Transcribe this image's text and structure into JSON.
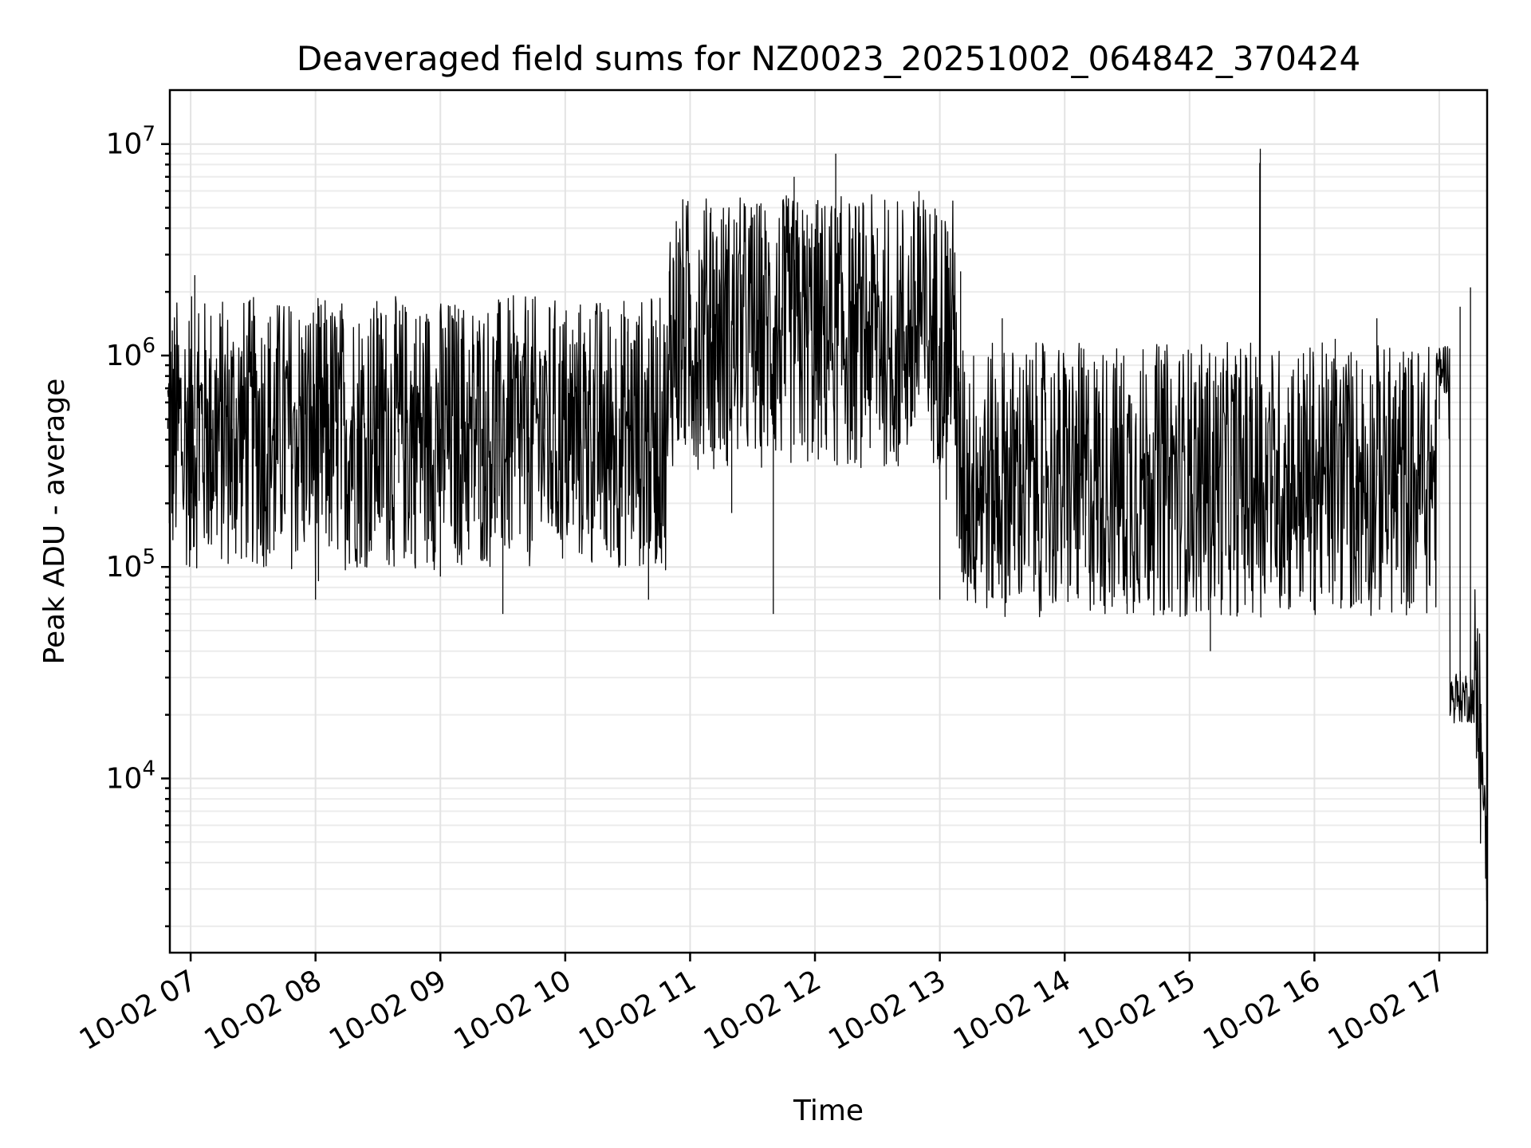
{
  "chart_data": {
    "type": "line",
    "title": "Deaveraged field sums for NZ0023_20251002_064842_370424",
    "xlabel": "Time",
    "ylabel": "Peak ADU - average",
    "yscale": "log",
    "ylim": [
      1500,
      18000000
    ],
    "xlim": [
      "2025-10-02 06:50",
      "2025-10-02 17:23"
    ],
    "grid": "major and minor",
    "x_ticks": [
      "10-02 07",
      "10-02 08",
      "10-02 09",
      "10-02 10",
      "10-02 11",
      "10-02 12",
      "10-02 13",
      "10-02 14",
      "10-02 15",
      "10-02 16",
      "10-02 17"
    ],
    "y_ticks": [
      {
        "base": "10",
        "exp": "4",
        "value": 10000
      },
      {
        "base": "10",
        "exp": "5",
        "value": 100000
      },
      {
        "base": "10",
        "exp": "6",
        "value": 1000000
      },
      {
        "base": "10",
        "exp": "7",
        "value": 10000000
      }
    ],
    "series": [
      {
        "color": "#000000",
        "x": [
          "2025-10-02 06:49",
          "2025-10-02 07:00",
          "2025-10-02 07:02",
          "2025-10-02 07:10",
          "2025-10-02 07:20",
          "2025-10-02 07:30",
          "2025-10-02 07:40",
          "2025-10-02 07:50",
          "2025-10-02 08:00",
          "2025-10-02 08:10",
          "2025-10-02 08:20",
          "2025-10-02 08:30",
          "2025-10-02 08:40",
          "2025-10-02 08:50",
          "2025-10-02 09:00",
          "2025-10-02 09:10",
          "2025-10-02 09:20",
          "2025-10-02 09:30",
          "2025-10-02 09:40",
          "2025-10-02 09:50",
          "2025-10-02 10:00",
          "2025-10-02 10:10",
          "2025-10-02 10:20",
          "2025-10-02 10:30",
          "2025-10-02 10:40",
          "2025-10-02 10:50",
          "2025-10-02 11:00",
          "2025-10-02 11:10",
          "2025-10-02 11:20",
          "2025-10-02 11:30",
          "2025-10-02 11:40",
          "2025-10-02 11:50",
          "2025-10-02 12:00",
          "2025-10-02 12:10",
          "2025-10-02 12:20",
          "2025-10-02 12:30",
          "2025-10-02 12:40",
          "2025-10-02 12:50",
          "2025-10-02 13:00",
          "2025-10-02 13:10",
          "2025-10-02 13:20",
          "2025-10-02 13:30",
          "2025-10-02 13:40",
          "2025-10-02 13:50",
          "2025-10-02 14:00",
          "2025-10-02 14:10",
          "2025-10-02 14:20",
          "2025-10-02 14:30",
          "2025-10-02 14:40",
          "2025-10-02 14:50",
          "2025-10-02 15:00",
          "2025-10-02 15:10",
          "2025-10-02 15:20",
          "2025-10-02 15:30",
          "2025-10-02 15:34",
          "2025-10-02 15:40",
          "2025-10-02 15:50",
          "2025-10-02 16:00",
          "2025-10-02 16:10",
          "2025-10-02 16:20",
          "2025-10-02 16:30",
          "2025-10-02 16:40",
          "2025-10-02 16:50",
          "2025-10-02 17:00",
          "2025-10-02 17:05",
          "2025-10-02 17:10",
          "2025-10-02 17:15",
          "2025-10-02 17:18",
          "2025-10-02 17:20",
          "2025-10-02 17:23"
        ],
        "values": [
          500000,
          120000,
          2400000,
          400000,
          150000,
          800000,
          120000,
          600000,
          70000,
          300000,
          150000,
          1500000,
          250000,
          700000,
          90000,
          1200000,
          300000,
          60000,
          800000,
          1000000,
          250000,
          800000,
          120000,
          1300000,
          70000,
          2500000,
          800000,
          5000000,
          180000,
          4500000,
          60000,
          7000000,
          500000,
          9000000,
          2000000,
          4000000,
          300000,
          6000000,
          70000,
          2500000,
          300000,
          1500000,
          300000,
          200000,
          600000,
          100000,
          250000,
          60000,
          350000,
          80000,
          500000,
          40000,
          300000,
          700000,
          9500000,
          200000,
          400000,
          100000,
          1200000,
          150000,
          1500000,
          100000,
          1000000,
          500000,
          400000,
          1700000,
          2100000,
          30000,
          18000,
          3500
        ]
      }
    ]
  }
}
